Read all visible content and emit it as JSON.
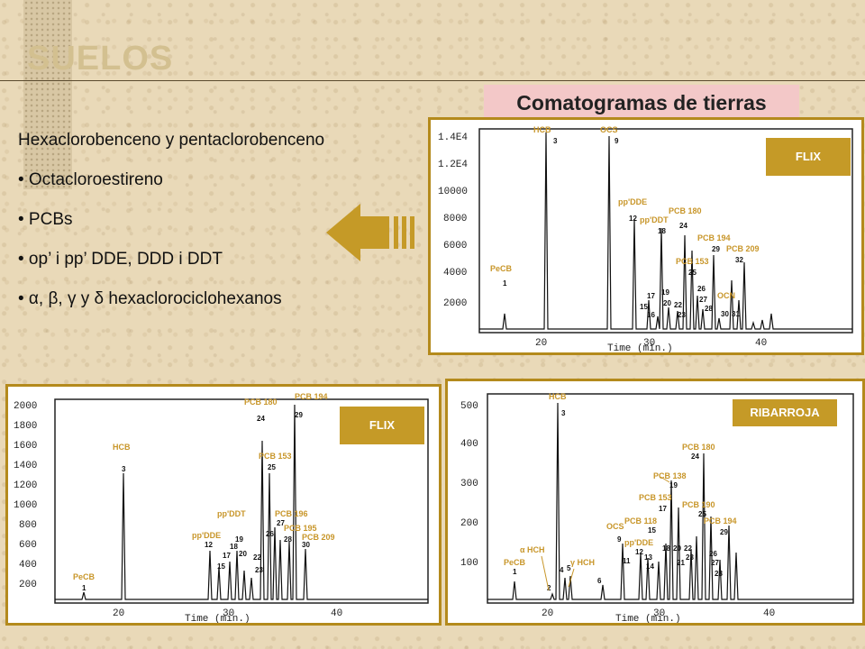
{
  "slide": {
    "title": "SUELOS",
    "subtitle": "Comatogramas de tierras",
    "bullets": [
      "Hexaclorobenceno y pentaclorobenceno",
      "• Octacloroestireno",
      "• PCBs",
      "• op’ i pp’ DDE, DDD i DDT",
      "• α, β, γ y  δ  hexaclorociclohexanos"
    ]
  },
  "chromatograms": [
    {
      "id": "top-right",
      "tag": "FLIX",
      "xlabel": "Time (min.)",
      "xticks": [
        "20",
        "30",
        "40"
      ],
      "yticks": [
        "1.4E4",
        "1.2E4",
        "10000",
        "8000",
        "6000",
        "4000",
        "2000"
      ],
      "labels": [
        "HCB",
        "OCS",
        "pp'DDE",
        "PCB 180",
        "pp'DDT",
        "PCB 194",
        "PCB 209",
        "PCB 153",
        "PeCB",
        "OCN"
      ],
      "numbers": [
        "3",
        "9",
        "12",
        "24",
        "18",
        "29",
        "32",
        "25",
        "1",
        "26",
        "17",
        "19",
        "27",
        "15",
        "20",
        "22",
        "28",
        "16",
        "23",
        "30",
        "31"
      ]
    },
    {
      "id": "bottom-left",
      "tag": "FLIX",
      "xlabel": "Time (min.)",
      "xticks": [
        "20",
        "30",
        "40"
      ],
      "yticks": [
        "2000",
        "1800",
        "1600",
        "1400",
        "1200",
        "1000",
        "800",
        "600",
        "400",
        "200"
      ],
      "labels": [
        "PCB 194",
        "PCB 180",
        "HCB",
        "PCB 153",
        "pp'DDT",
        "PCB 196",
        "PCB 195",
        "pp'DDE",
        "PCB 209",
        "PeCB"
      ],
      "numbers": [
        "24",
        "29",
        "3",
        "25",
        "27",
        "19",
        "26",
        "28",
        "12",
        "18",
        "30",
        "17",
        "20",
        "22",
        "15",
        "23",
        "1"
      ]
    },
    {
      "id": "bottom-right",
      "tag": "RIBARROJA",
      "xlabel": "Time (min.)",
      "xticks": [
        "20",
        "30",
        "40"
      ],
      "yticks": [
        "500",
        "400",
        "300",
        "200",
        "100"
      ],
      "labels": [
        "HCB",
        "PCB 180",
        "PCB 138",
        "PCB 153",
        "PCB 190",
        "PCB 118",
        "PCB 194",
        "OCS",
        "pp'DDE",
        "α HCH",
        "γ HCH",
        "PeCB"
      ],
      "numbers": [
        "3",
        "24",
        "19",
        "25",
        "17",
        "15",
        "29",
        "9",
        "12",
        "18",
        "20",
        "22",
        "26",
        "11",
        "13",
        "14",
        "21",
        "23",
        "27",
        "28",
        "4",
        "5",
        "6",
        "1",
        "2"
      ]
    }
  ]
}
